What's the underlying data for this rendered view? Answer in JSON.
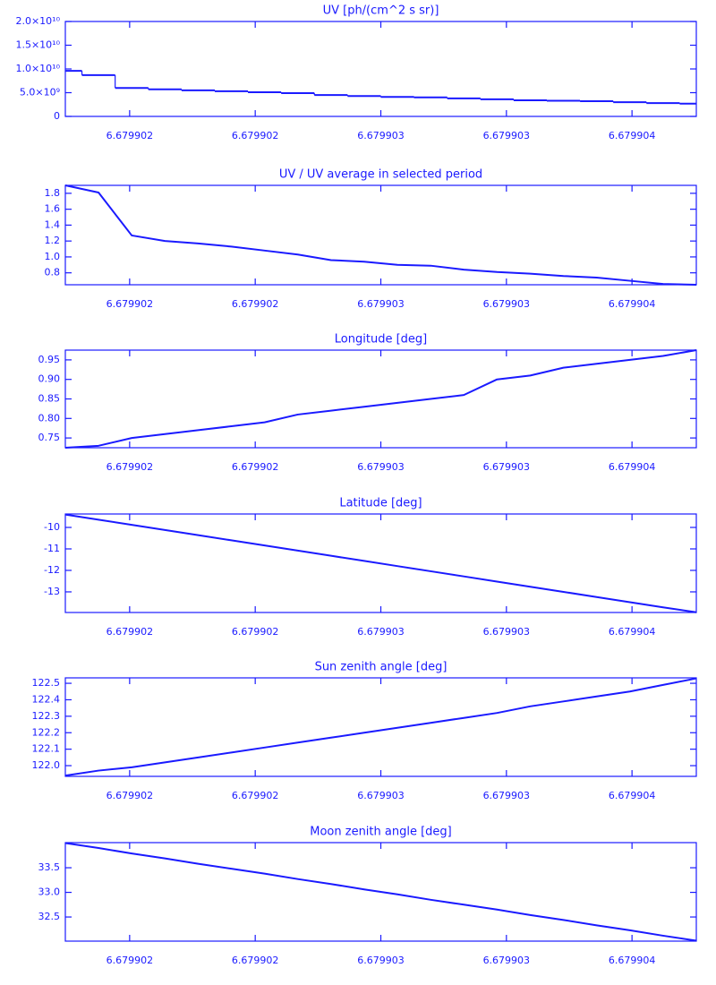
{
  "chart_data": [
    {
      "type": "line",
      "title": "UV [ph/(cm^2 s sr)]",
      "drawstyle": "steps-mid",
      "color": "#1a1aff",
      "x": [
        6.679901744,
        6.6799018762,
        6.6799020084,
        6.6799021406,
        6.6799022728,
        6.679902405,
        6.6799025372,
        6.6799026694,
        6.6799028016,
        6.6799029338,
        6.679903066,
        6.6799031982,
        6.6799033304,
        6.6799034626,
        6.6799035948,
        6.679903727,
        6.6799038592,
        6.6799039914,
        6.6799041236,
        6.679904256
      ],
      "values": [
        9600000000,
        8700000000,
        6000000000,
        5700000000,
        5500000000,
        5300000000,
        5100000000,
        4900000000,
        4500000000,
        4300000000,
        4100000000,
        4000000000,
        3800000000,
        3600000000,
        3400000000,
        3300000000,
        3200000000,
        3000000000,
        2800000000,
        2700000000
      ],
      "xlim": [
        6.679901744,
        6.679904256
      ],
      "xticks": [
        {
          "value": 6.679902,
          "label": "6.679902"
        },
        {
          "value": 6.6799025,
          "label": "6.679902"
        },
        {
          "value": 6.679903,
          "label": "6.679903"
        },
        {
          "value": 6.6799035,
          "label": "6.679903"
        },
        {
          "value": 6.679904,
          "label": "6.679904"
        }
      ],
      "ylim": [
        0,
        20000000000
      ],
      "yticks": [
        0,
        {
          "value": 5000000000,
          "label": "5.0×10⁹"
        },
        {
          "value": 10000000000,
          "label": "1.0×10¹⁰"
        },
        {
          "value": 15000000000,
          "label": "1.5×10¹⁰"
        },
        {
          "value": 20000000000,
          "label": "2.0×10¹⁰"
        }
      ]
    },
    {
      "type": "line",
      "title": "UV / UV average in selected period",
      "color": "#1a1aff",
      "x": [
        6.679901744,
        6.6799018762,
        6.6799020084,
        6.6799021406,
        6.6799022728,
        6.679902405,
        6.6799025372,
        6.6799026694,
        6.6799028016,
        6.6799029338,
        6.679903066,
        6.6799031982,
        6.6799033304,
        6.6799034626,
        6.6799035948,
        6.679903727,
        6.6799038592,
        6.6799039914,
        6.6799041236,
        6.679904256
      ],
      "values": [
        1.9,
        1.81,
        1.27,
        1.2,
        1.17,
        1.13,
        1.08,
        1.03,
        0.96,
        0.94,
        0.9,
        0.89,
        0.84,
        0.81,
        0.79,
        0.76,
        0.74,
        0.7,
        0.66,
        0.65
      ],
      "xlim": [
        6.679901744,
        6.679904256
      ],
      "xticks": [
        {
          "value": 6.679902,
          "label": "6.679902"
        },
        {
          "value": 6.6799025,
          "label": "6.679902"
        },
        {
          "value": 6.679903,
          "label": "6.679903"
        },
        {
          "value": 6.6799035,
          "label": "6.679903"
        },
        {
          "value": 6.679904,
          "label": "6.679904"
        }
      ],
      "ylim": [
        0.65,
        1.9
      ],
      "yticks": [
        0.8,
        {
          "value": 1.0,
          "label": "1.0"
        },
        1.2,
        1.4,
        1.6,
        1.8
      ]
    },
    {
      "type": "line",
      "title": "Longitude [deg]",
      "color": "#1a1aff",
      "x": [
        6.679901744,
        6.6799018762,
        6.6799020084,
        6.6799021406,
        6.6799022728,
        6.679902405,
        6.6799025372,
        6.6799026694,
        6.6799028016,
        6.6799029338,
        6.679903066,
        6.6799031982,
        6.6799033304,
        6.6799034626,
        6.6799035948,
        6.679903727,
        6.6799038592,
        6.6799039914,
        6.6799041236,
        6.679904256
      ],
      "values": [
        0.725,
        0.73,
        0.75,
        0.76,
        0.77,
        0.78,
        0.79,
        0.81,
        0.82,
        0.83,
        0.84,
        0.85,
        0.86,
        0.9,
        0.91,
        0.93,
        0.94,
        0.95,
        0.96,
        0.975
      ],
      "xlim": [
        6.679901744,
        6.679904256
      ],
      "xticks": [
        {
          "value": 6.679902,
          "label": "6.679902"
        },
        {
          "value": 6.6799025,
          "label": "6.679902"
        },
        {
          "value": 6.679903,
          "label": "6.679903"
        },
        {
          "value": 6.6799035,
          "label": "6.679903"
        },
        {
          "value": 6.679904,
          "label": "6.679904"
        }
      ],
      "ylim": [
        0.725,
        0.975
      ],
      "yticks": [
        0.75,
        {
          "value": 0.8,
          "label": "0.80"
        },
        0.85,
        {
          "value": 0.9,
          "label": "0.90"
        },
        0.95
      ]
    },
    {
      "type": "line",
      "title": "Latitude [deg]",
      "color": "#1a1aff",
      "x": [
        6.679901744,
        6.6799018762,
        6.6799020084,
        6.6799021406,
        6.6799022728,
        6.679902405,
        6.6799025372,
        6.6799026694,
        6.6799028016,
        6.6799029338,
        6.679903066,
        6.6799031982,
        6.6799033304,
        6.6799034626,
        6.6799035948,
        6.679903727,
        6.6799038592,
        6.6799039914,
        6.6799041236,
        6.679904256
      ],
      "values": [
        -9.4,
        -9.64,
        -9.88,
        -10.12,
        -10.36,
        -10.6,
        -10.84,
        -11.08,
        -11.32,
        -11.56,
        -11.8,
        -12.04,
        -12.28,
        -12.52,
        -12.76,
        -13.0,
        -13.24,
        -13.48,
        -13.72,
        -13.95
      ],
      "xlim": [
        6.679901744,
        6.679904256
      ],
      "xticks": [
        {
          "value": 6.679902,
          "label": "6.679902"
        },
        {
          "value": 6.6799025,
          "label": "6.679902"
        },
        {
          "value": 6.679903,
          "label": "6.679903"
        },
        {
          "value": 6.6799035,
          "label": "6.679903"
        },
        {
          "value": 6.679904,
          "label": "6.679904"
        }
      ],
      "ylim": [
        -13.96,
        -9.375
      ],
      "yticks": [
        -13,
        -12,
        -11,
        -10
      ]
    },
    {
      "type": "line",
      "title": "Sun zenith angle [deg]",
      "color": "#1a1aff",
      "x": [
        6.679901744,
        6.6799018762,
        6.6799020084,
        6.6799021406,
        6.6799022728,
        6.679902405,
        6.6799025372,
        6.6799026694,
        6.6799028016,
        6.6799029338,
        6.679903066,
        6.6799031982,
        6.6799033304,
        6.6799034626,
        6.6799035948,
        6.679903727,
        6.6799038592,
        6.6799039914,
        6.6799041236,
        6.679904256
      ],
      "values": [
        121.94,
        121.97,
        121.99,
        122.02,
        122.05,
        122.08,
        122.11,
        122.14,
        122.17,
        122.2,
        122.23,
        122.26,
        122.29,
        122.32,
        122.36,
        122.39,
        122.42,
        122.45,
        122.49,
        122.53
      ],
      "xlim": [
        6.679901744,
        6.679904256
      ],
      "xticks": [
        {
          "value": 6.679902,
          "label": "6.679902"
        },
        {
          "value": 6.6799025,
          "label": "6.679902"
        },
        {
          "value": 6.679903,
          "label": "6.679903"
        },
        {
          "value": 6.6799035,
          "label": "6.679903"
        },
        {
          "value": 6.679904,
          "label": "6.679904"
        }
      ],
      "ylim": [
        121.935,
        122.533
      ],
      "yticks": [
        {
          "value": 122.0,
          "label": "122.0"
        },
        122.1,
        122.2,
        122.3,
        122.4,
        122.5
      ]
    },
    {
      "type": "line",
      "title": "Moon zenith angle [deg]",
      "color": "#1a1aff",
      "x": [
        6.679901744,
        6.6799018762,
        6.6799020084,
        6.6799021406,
        6.6799022728,
        6.679902405,
        6.6799025372,
        6.6799026694,
        6.6799028016,
        6.6799029338,
        6.679903066,
        6.6799031982,
        6.6799033304,
        6.6799034626,
        6.6799035948,
        6.679903727,
        6.6799038592,
        6.6799039914,
        6.6799041236,
        6.679904256
      ],
      "values": [
        34.0,
        33.9,
        33.79,
        33.69,
        33.58,
        33.48,
        33.38,
        33.27,
        33.17,
        33.06,
        32.96,
        32.85,
        32.75,
        32.65,
        32.54,
        32.44,
        32.33,
        32.23,
        32.12,
        32.02
      ],
      "xlim": [
        6.679901744,
        6.679904256
      ],
      "xticks": [
        {
          "value": 6.679902,
          "label": "6.679902"
        },
        {
          "value": 6.6799025,
          "label": "6.679902"
        },
        {
          "value": 6.679903,
          "label": "6.679903"
        },
        {
          "value": 6.6799035,
          "label": "6.679903"
        },
        {
          "value": 6.679904,
          "label": "6.679904"
        }
      ],
      "ylim": [
        32.01,
        34.01
      ],
      "yticks": [
        32.5,
        {
          "value": 33.0,
          "label": "33.0"
        },
        33.5
      ]
    }
  ]
}
